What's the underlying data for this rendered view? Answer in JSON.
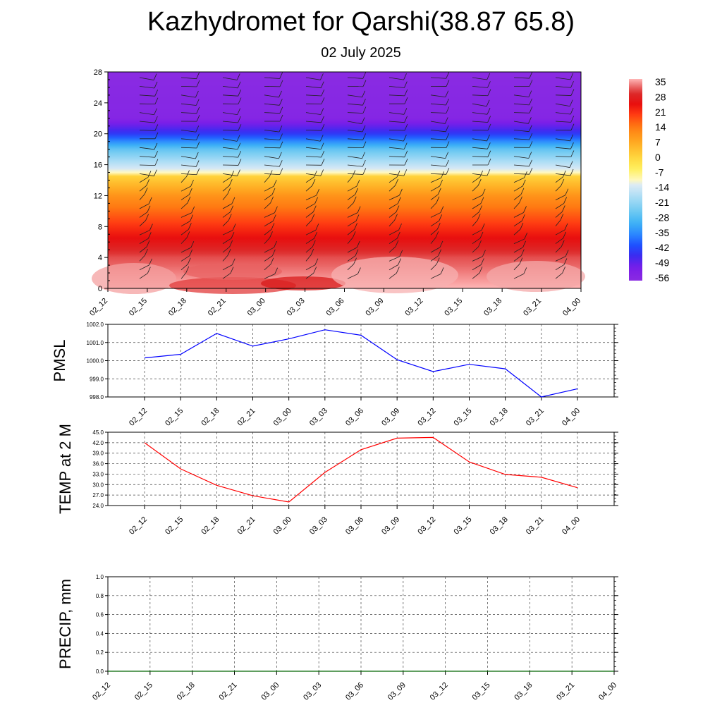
{
  "header": {
    "title": "Kazhydromet for Qarshi(38.87 65.8)",
    "date": "02 July 2025"
  },
  "colors": {
    "pmsl_line": "#0000ff",
    "temp_line": "#ff0000",
    "precip_line": "#006400",
    "colormap_low": "#8a2be2",
    "colormap_mid": "#ffff66",
    "colormap_high": "#ffb6b6"
  },
  "chart_data": [
    {
      "type": "heatmap",
      "name": "wind-temperature-cross-section",
      "x_categories": [
        "02_12",
        "02_15",
        "02_18",
        "02_21",
        "03_00",
        "03_03",
        "03_06",
        "03_09",
        "03_12",
        "03_15",
        "03_18",
        "03_21",
        "04_00"
      ],
      "y_ticks": [
        0,
        4,
        8,
        12,
        16,
        20,
        24,
        28
      ],
      "ylim": [
        0,
        28
      ],
      "colorbar_labels": [
        "35",
        "28",
        "21",
        "14",
        "7",
        "0",
        "-7",
        "-14",
        "-21",
        "-28",
        "-35",
        "-42",
        "-49",
        "-56"
      ],
      "temperature_profile": [
        {
          "level": 0,
          "value": 35
        },
        {
          "level": 4,
          "value": 30
        },
        {
          "level": 8,
          "value": 19
        },
        {
          "level": 12,
          "value": 8
        },
        {
          "level": 14.5,
          "value": -2
        },
        {
          "level": 15,
          "value": -14
        },
        {
          "level": 18,
          "value": -30
        },
        {
          "level": 20,
          "value": -48
        },
        {
          "level": 22,
          "value": -60
        },
        {
          "level": 28,
          "value": -62
        }
      ],
      "wind_barbs": "present"
    },
    {
      "type": "line",
      "name": "PMSL",
      "ylabel": "PMSL",
      "x": [
        "02_12",
        "02_15",
        "02_18",
        "02_21",
        "03_00",
        "03_03",
        "03_06",
        "03_09",
        "03_12",
        "03_15",
        "03_18",
        "03_21",
        "04_00"
      ],
      "values": [
        1000.15,
        1000.35,
        1001.5,
        1000.8,
        1001.2,
        1001.7,
        1001.4,
        1000.05,
        999.4,
        999.8,
        999.55,
        998.0,
        998.45
      ],
      "ylim": [
        998.0,
        1002.0
      ],
      "y_ticks": [
        "998.0",
        "999.0",
        "1000.0",
        "1001.0",
        "1002.0"
      ],
      "grid": true
    },
    {
      "type": "line",
      "name": "TEMP at 2 M",
      "ylabel": "TEMP at 2 M",
      "x": [
        "02_12",
        "02_15",
        "02_18",
        "02_21",
        "03_00",
        "03_03",
        "03_06",
        "03_09",
        "03_12",
        "03_15",
        "03_18",
        "03_21",
        "04_00"
      ],
      "values": [
        42.0,
        34.5,
        29.8,
        26.8,
        25.0,
        33.5,
        40.0,
        43.3,
        43.5,
        36.5,
        32.9,
        32.1,
        29.1
      ],
      "ylim": [
        24.0,
        45.0
      ],
      "y_ticks": [
        "24.0",
        "27.0",
        "30.0",
        "33.0",
        "36.0",
        "39.0",
        "42.0",
        "45.0"
      ],
      "grid": true
    },
    {
      "type": "line",
      "name": "PRECIP, mm",
      "ylabel": "PRECIP, mm",
      "x": [
        "02_12",
        "02_15",
        "02_18",
        "02_21",
        "03_00",
        "03_03",
        "03_06",
        "03_09",
        "03_12",
        "03_15",
        "03_18",
        "03_21",
        "04_00"
      ],
      "values": [
        0,
        0,
        0,
        0,
        0,
        0,
        0,
        0,
        0,
        0,
        0,
        0,
        0
      ],
      "ylim": [
        0.0,
        1.0
      ],
      "y_ticks": [
        "0.0",
        "0.2",
        "0.4",
        "0.6",
        "0.8",
        "1.0"
      ],
      "grid": true
    }
  ]
}
